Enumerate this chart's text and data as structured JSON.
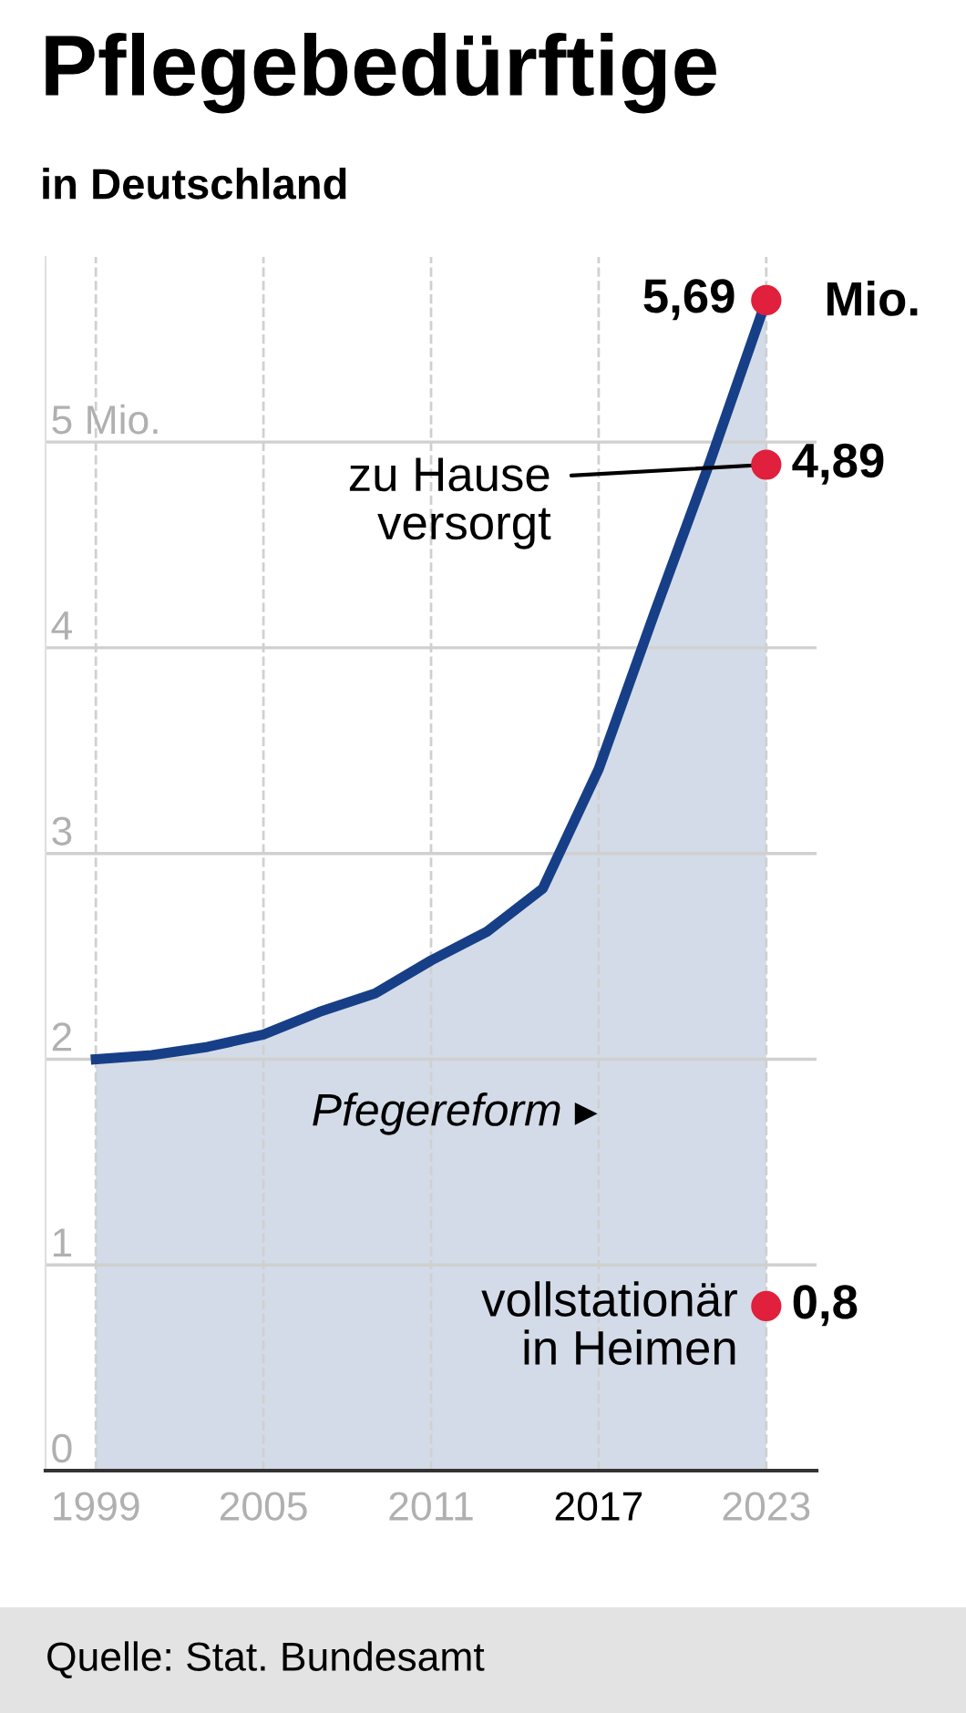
{
  "chart_data": {
    "type": "area",
    "title": "Pflegebedürftige",
    "subtitle": "in Deutschland",
    "x": [
      1999,
      2001,
      2003,
      2005,
      2007,
      2009,
      2011,
      2013,
      2015,
      2017,
      2019,
      2021,
      2023
    ],
    "series": [
      {
        "color": "#173f87",
        "values": [
          2.0,
          2.02,
          2.06,
          2.12,
          2.23,
          2.32,
          2.48,
          2.62,
          2.83,
          3.41,
          4.17,
          4.91,
          5.69
        ],
        "value_labels": [
          null,
          null,
          null,
          null,
          null,
          null,
          null,
          null,
          null,
          null,
          null,
          null,
          "5,69"
        ]
      },
      {
        "type": "scatter",
        "marker": "circle",
        "color": "#e0203c",
        "x": [
          2023,
          2023
        ],
        "values": [
          4.89,
          0.8
        ],
        "value_labels": [
          "4,89",
          "0,8"
        ]
      }
    ],
    "xlim": [
      1997.2,
      2024.8
    ],
    "ylim": [
      0,
      5.9
    ],
    "xticks": [
      1999,
      2005,
      2011,
      2017,
      2023
    ],
    "yticks": [
      0,
      1,
      2,
      3,
      4,
      {
        "value": 5,
        "label": "5 Mio."
      }
    ],
    "grid": true,
    "annotations": [
      "Mio.",
      {
        "text": "zu Hause\nversorgt",
        "x": 2023,
        "y": 4.89
      },
      "vollstationär\nin Heimen",
      "Pfegereform ▸",
      "Quelle: Stat. Bundesamt"
    ]
  }
}
